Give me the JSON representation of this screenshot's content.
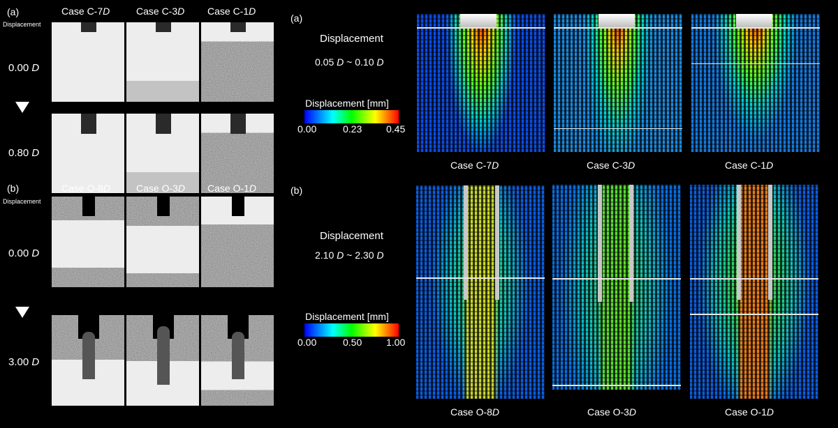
{
  "left": {
    "a": {
      "label": "(a)",
      "cases": [
        "Case C-7",
        "Case C-3",
        "Case C-1"
      ],
      "case_suffix": "D",
      "row_header": "Displacement",
      "rows": [
        {
          "value": "0.00",
          "unit": "D"
        },
        {
          "value": "0.80",
          "unit": "D"
        }
      ]
    },
    "b": {
      "label": "(b)",
      "cases": [
        "Case O-8",
        "Case O-3",
        "Case O-1"
      ],
      "case_suffix": "D",
      "row_header": "Displacement",
      "rows": [
        {
          "value": "0.00",
          "unit": "D"
        },
        {
          "value": "3.00",
          "unit": "D"
        }
      ]
    }
  },
  "right": {
    "a": {
      "label": "(a)",
      "title": "Displacement",
      "range_from": "0.05",
      "range_to": "0.10",
      "unit": "D",
      "sep": "~",
      "colorbar": {
        "title": "Displacement [mm]",
        "ticks": [
          "0.00",
          "0.23",
          "0.45"
        ]
      },
      "cases": [
        "Case C-7",
        "Case C-3",
        "Case C-1"
      ]
    },
    "b": {
      "label": "(b)",
      "title": "Displacement",
      "range_from": "2.10",
      "range_to": "2.30",
      "unit": "D",
      "sep": "~",
      "colorbar": {
        "title": "Displacement [mm]",
        "ticks": [
          "0.00",
          "0.50",
          "1.00"
        ]
      },
      "cases": [
        "Case O-8",
        "Case O-3",
        "Case O-1"
      ]
    },
    "case_suffix": "D"
  },
  "colors": {
    "background": "#000000",
    "colormap": [
      "#0000ff",
      "#00ffff",
      "#00ff00",
      "#ffff00",
      "#ff0000"
    ]
  }
}
